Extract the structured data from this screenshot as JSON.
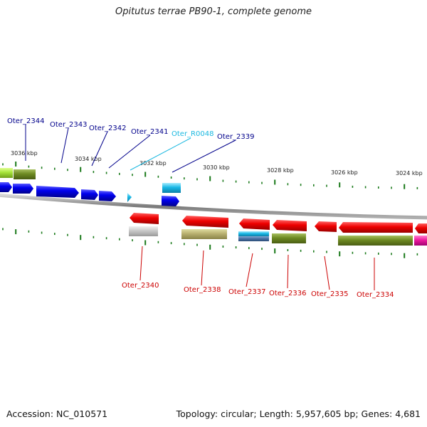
{
  "title": "Opitutus terrae PB90-1, complete genome",
  "footer": {
    "accession": "Accession: NC_010571",
    "summary": "Topology: circular; Length: 5,957,605 bp; Genes: 4,681"
  },
  "colors": {
    "top_label": "#00008b",
    "rna_label": "#1ab8e0",
    "bottom_label": "#cc0000",
    "tick": "#1a7a1a",
    "backbone": "#8c8c8c"
  },
  "ticks": [
    {
      "label": "3036 kbp"
    },
    {
      "label": "3034 kbp"
    },
    {
      "label": "3032 kbp"
    },
    {
      "label": "3030 kbp"
    },
    {
      "label": "3028 kbp"
    },
    {
      "label": "3026 kbp"
    },
    {
      "label": "3024 kbp"
    }
  ],
  "top_labels": [
    {
      "text": "Oter_2344",
      "kind": "cds"
    },
    {
      "text": "Oter_2343",
      "kind": "cds"
    },
    {
      "text": "Oter_2342",
      "kind": "cds"
    },
    {
      "text": "Oter_2341",
      "kind": "cds"
    },
    {
      "text": "Oter_R0048",
      "kind": "rna"
    },
    {
      "text": "Oter_2339",
      "kind": "cds"
    }
  ],
  "bottom_labels": [
    {
      "text": "Oter_2340"
    },
    {
      "text": "Oter_2338"
    },
    {
      "text": "Oter_2337"
    },
    {
      "text": "Oter_2336"
    },
    {
      "text": "Oter_2335"
    },
    {
      "text": "Oter_2334"
    }
  ]
}
